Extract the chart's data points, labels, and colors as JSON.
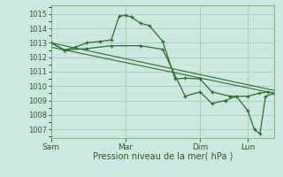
{
  "background_color": "#cce8e0",
  "grid_color_major": "#aaccbb",
  "grid_color_minor": "#c0ddd6",
  "line_color": "#2d6e2d",
  "xlabel": "Pression niveau de la mer( hPa )",
  "ylim": [
    1006.4,
    1015.6
  ],
  "yticks": [
    1007,
    1008,
    1009,
    1010,
    1011,
    1012,
    1013,
    1014,
    1015
  ],
  "day_positions": [
    0.0,
    0.333,
    0.667,
    0.88
  ],
  "day_labels": [
    "Sam",
    "Mar",
    "Dim",
    "Lun"
  ],
  "series": [
    {
      "x": [
        0.0,
        0.06,
        0.11,
        0.16,
        0.22,
        0.27,
        0.305,
        0.333,
        0.36,
        0.4,
        0.44,
        0.5,
        0.555,
        0.6,
        0.667,
        0.72,
        0.8,
        0.88,
        0.93,
        0.97,
        1.0
      ],
      "y": [
        1013.0,
        1012.5,
        1012.7,
        1013.0,
        1013.1,
        1013.2,
        1014.85,
        1014.9,
        1014.8,
        1014.35,
        1014.2,
        1013.1,
        1010.5,
        1010.55,
        1010.5,
        1009.6,
        1009.3,
        1009.3,
        1009.5,
        1009.6,
        1009.5
      ],
      "marker": true
    },
    {
      "x": [
        0.0,
        0.06,
        0.16,
        0.27,
        0.4,
        0.5,
        0.6,
        0.667,
        0.72,
        0.78,
        0.83,
        0.88,
        0.91,
        0.935,
        0.96,
        1.0
      ],
      "y": [
        1013.0,
        1012.5,
        1012.6,
        1012.8,
        1012.8,
        1012.55,
        1009.3,
        1009.6,
        1008.8,
        1009.0,
        1009.3,
        1008.3,
        1007.0,
        1006.7,
        1009.3,
        1009.5
      ],
      "marker": true
    },
    {
      "x": [
        0.0,
        1.0
      ],
      "y": [
        1013.0,
        1009.7
      ],
      "marker": false
    },
    {
      "x": [
        0.0,
        1.0
      ],
      "y": [
        1012.7,
        1009.5
      ],
      "marker": false
    }
  ]
}
